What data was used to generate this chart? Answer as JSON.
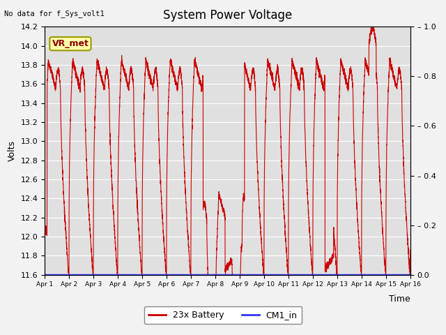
{
  "title": "System Power Voltage",
  "no_data_label": "No data for f_Sys_volt1",
  "xlabel": "Time",
  "ylabel": "Volts",
  "ylim_left": [
    11.6,
    14.2
  ],
  "ylim_right": [
    0.0,
    1.0
  ],
  "yticks_left": [
    11.6,
    11.8,
    12.0,
    12.2,
    12.4,
    12.6,
    12.8,
    13.0,
    13.2,
    13.4,
    13.6,
    13.8,
    14.0,
    14.2
  ],
  "yticks_right": [
    0.0,
    0.2,
    0.4,
    0.6,
    0.8,
    1.0
  ],
  "xtick_labels": [
    "Apr 1",
    "Apr 2",
    "Apr 3",
    "Apr 4",
    "Apr 5",
    "Apr 6",
    "Apr 7",
    "Apr 8",
    "Apr 9",
    "Apr 10",
    "Apr 11",
    "Apr 12",
    "Apr 13",
    "Apr 14",
    "Apr 15",
    "Apr 16"
  ],
  "fig_bg": "#f2f2f2",
  "plot_bg": "#e0e0e0",
  "grid_color": "#ffffff",
  "line_color_battery": "#cc0000",
  "line_color_cm1": "#3333ff",
  "legend_battery": "23x Battery",
  "legend_cm1": "CM1_in",
  "vr_met_label": "VR_met",
  "vr_met_bg": "#ffffaa",
  "vr_met_border": "#999900",
  "title_fontsize": 12,
  "axis_fontsize": 9,
  "tick_fontsize": 8
}
